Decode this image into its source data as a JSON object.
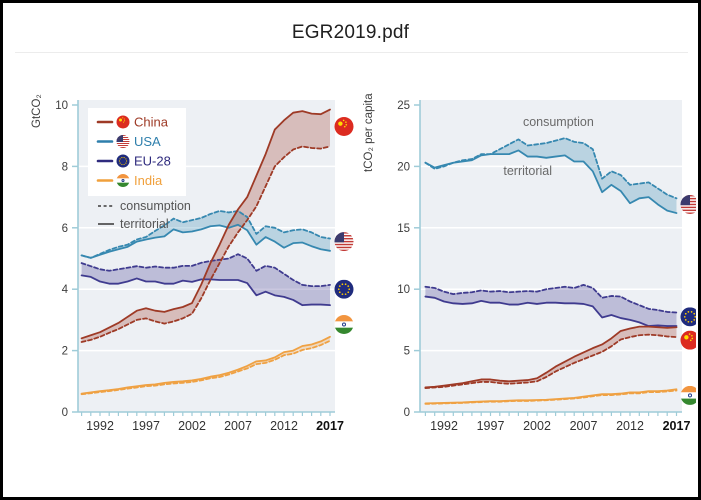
{
  "window": {
    "title": "EGR2019.pdf"
  },
  "colors": {
    "china": "#9e3a26",
    "usa": "#3688b0",
    "eu": "#3f3b8f",
    "india": "#efa143",
    "axis": "#9fccd8",
    "plot_bg": "#edf0f4",
    "grid": "#ffffff",
    "annotation": "#6a6a6a"
  },
  "chart_data": [
    {
      "type": "line",
      "title": "",
      "xlabel": "",
      "ylabel": "GtCO₂",
      "ylim": [
        0,
        10
      ],
      "yticks": [
        0,
        2,
        4,
        6,
        8,
        10
      ],
      "x": [
        1990,
        1991,
        1992,
        1993,
        1994,
        1995,
        1996,
        1997,
        1998,
        1999,
        2000,
        2001,
        2002,
        2003,
        2004,
        2005,
        2006,
        2007,
        2008,
        2009,
        2010,
        2011,
        2012,
        2013,
        2014,
        2015,
        2016,
        2017
      ],
      "xticks": [
        1992,
        1997,
        2002,
        2007,
        2012,
        2017
      ],
      "xtick_bold": 2017,
      "grid": true,
      "series": [
        {
          "name": "USA territorial",
          "country": "usa",
          "mode": "territorial",
          "color": "#3688b0",
          "values": [
            5.1,
            5.02,
            5.12,
            5.22,
            5.3,
            5.38,
            5.55,
            5.62,
            5.68,
            5.72,
            5.95,
            5.85,
            5.88,
            5.95,
            6.05,
            6.08,
            6.0,
            6.1,
            5.92,
            5.45,
            5.7,
            5.55,
            5.35,
            5.5,
            5.52,
            5.4,
            5.3,
            5.25
          ]
        },
        {
          "name": "USA consumption",
          "country": "usa",
          "mode": "consumption",
          "color": "#3688b0",
          "values": [
            5.1,
            5.02,
            5.15,
            5.28,
            5.38,
            5.45,
            5.62,
            5.7,
            5.9,
            6.08,
            6.3,
            6.18,
            6.25,
            6.32,
            6.45,
            6.55,
            6.5,
            6.55,
            6.35,
            5.8,
            6.05,
            6.0,
            5.85,
            5.92,
            5.95,
            5.85,
            5.7,
            5.65
          ]
        },
        {
          "name": "EU-28 territorial",
          "country": "eu",
          "mode": "territorial",
          "color": "#3f3b8f",
          "values": [
            4.45,
            4.4,
            4.25,
            4.18,
            4.18,
            4.25,
            4.35,
            4.25,
            4.25,
            4.18,
            4.18,
            4.28,
            4.24,
            4.32,
            4.32,
            4.3,
            4.3,
            4.3,
            4.2,
            3.8,
            3.92,
            3.8,
            3.75,
            3.65,
            3.48,
            3.5,
            3.5,
            3.48
          ]
        },
        {
          "name": "EU-28 consumption",
          "country": "eu",
          "mode": "consumption",
          "color": "#3f3b8f",
          "values": [
            4.85,
            4.75,
            4.65,
            4.6,
            4.65,
            4.7,
            4.75,
            4.7,
            4.74,
            4.7,
            4.7,
            4.76,
            4.76,
            4.86,
            4.92,
            4.96,
            5.0,
            5.14,
            5.0,
            4.6,
            4.76,
            4.7,
            4.5,
            4.3,
            4.14,
            4.1,
            4.1,
            4.14
          ]
        },
        {
          "name": "India territorial",
          "country": "india",
          "mode": "territorial",
          "color": "#efa143",
          "values": [
            0.6,
            0.64,
            0.68,
            0.71,
            0.75,
            0.8,
            0.84,
            0.88,
            0.9,
            0.95,
            0.98,
            1.0,
            1.03,
            1.08,
            1.15,
            1.2,
            1.28,
            1.38,
            1.5,
            1.65,
            1.68,
            1.78,
            1.95,
            2.0,
            2.15,
            2.2,
            2.3,
            2.45
          ]
        },
        {
          "name": "India consumption",
          "country": "india",
          "mode": "consumption",
          "color": "#efa143",
          "values": [
            0.58,
            0.61,
            0.65,
            0.68,
            0.72,
            0.76,
            0.8,
            0.84,
            0.86,
            0.9,
            0.93,
            0.95,
            0.98,
            1.03,
            1.1,
            1.14,
            1.22,
            1.32,
            1.42,
            1.56,
            1.6,
            1.7,
            1.85,
            1.9,
            2.02,
            2.08,
            2.18,
            2.32
          ]
        },
        {
          "name": "China territorial",
          "country": "china",
          "mode": "territorial",
          "color": "#9e3a26",
          "values": [
            2.4,
            2.5,
            2.6,
            2.75,
            2.9,
            3.1,
            3.3,
            3.38,
            3.3,
            3.26,
            3.35,
            3.42,
            3.55,
            4.15,
            4.85,
            5.45,
            6.1,
            6.6,
            7.0,
            7.7,
            8.4,
            9.2,
            9.5,
            9.75,
            9.8,
            9.72,
            9.7,
            9.85
          ]
        },
        {
          "name": "China consumption",
          "country": "china",
          "mode": "consumption",
          "color": "#9e3a26",
          "values": [
            2.28,
            2.35,
            2.45,
            2.58,
            2.7,
            2.85,
            3.0,
            3.05,
            2.95,
            2.88,
            2.95,
            3.05,
            3.2,
            3.7,
            4.3,
            4.85,
            5.4,
            5.85,
            6.25,
            6.7,
            7.35,
            8.0,
            8.3,
            8.55,
            8.65,
            8.6,
            8.58,
            8.65
          ]
        }
      ],
      "legend": {
        "position": "top-left",
        "entries": [
          {
            "label": "China",
            "flag": "china",
            "color": "#9e3a26"
          },
          {
            "label": "USA",
            "flag": "usa",
            "color": "#2e7fac"
          },
          {
            "label": "EU-28",
            "flag": "eu",
            "color": "#2f2b7e"
          },
          {
            "label": "India",
            "flag": "india",
            "color": "#f0a03c"
          }
        ],
        "consumption_label": "consumption",
        "territorial_label": "territorial"
      },
      "flags": [
        {
          "country": "china",
          "value": 9.3
        },
        {
          "country": "usa",
          "value": 5.55
        },
        {
          "country": "eu",
          "value": 4.0
        },
        {
          "country": "india",
          "value": 2.85
        }
      ]
    },
    {
      "type": "line",
      "title": "",
      "xlabel": "",
      "ylabel": "tCO₂ per capita",
      "ylim": [
        0,
        25
      ],
      "yticks": [
        0,
        5,
        10,
        15,
        20,
        25
      ],
      "x": [
        1990,
        1991,
        1992,
        1993,
        1994,
        1995,
        1996,
        1997,
        1998,
        1999,
        2000,
        2001,
        2002,
        2003,
        2004,
        2005,
        2006,
        2007,
        2008,
        2009,
        2010,
        2011,
        2012,
        2013,
        2014,
        2015,
        2016,
        2017
      ],
      "xticks": [
        1992,
        1997,
        2002,
        2007,
        2012,
        2017
      ],
      "xtick_bold": 2017,
      "grid": true,
      "series": [
        {
          "name": "USA territorial",
          "country": "usa",
          "mode": "territorial",
          "color": "#3688b0",
          "values": [
            20.3,
            19.9,
            20.1,
            20.3,
            20.4,
            20.5,
            20.9,
            21.0,
            21.0,
            21.0,
            21.3,
            20.8,
            20.8,
            20.7,
            20.8,
            20.9,
            20.4,
            20.4,
            19.6,
            17.9,
            18.5,
            18.0,
            17.0,
            17.4,
            17.5,
            16.9,
            16.4,
            16.2
          ]
        },
        {
          "name": "USA consumption",
          "country": "usa",
          "mode": "consumption",
          "color": "#3688b0",
          "values": [
            20.3,
            19.8,
            20.0,
            20.3,
            20.5,
            20.6,
            21.0,
            21.0,
            21.4,
            21.8,
            22.2,
            21.7,
            21.8,
            21.9,
            22.1,
            22.3,
            22.0,
            21.9,
            21.4,
            19.0,
            19.6,
            19.3,
            18.5,
            18.6,
            18.7,
            18.2,
            17.7,
            17.4
          ]
        },
        {
          "name": "EU-28 territorial",
          "country": "eu",
          "mode": "territorial",
          "color": "#3f3b8f",
          "values": [
            9.4,
            9.3,
            9.0,
            8.85,
            8.8,
            8.85,
            9.05,
            8.9,
            8.9,
            8.75,
            8.75,
            8.9,
            8.8,
            8.9,
            8.9,
            8.85,
            8.85,
            8.8,
            8.6,
            7.7,
            7.9,
            7.65,
            7.5,
            7.3,
            7.0,
            7.05,
            7.0,
            7.0
          ]
        },
        {
          "name": "EU-28 consumption",
          "country": "eu",
          "mode": "consumption",
          "color": "#3f3b8f",
          "values": [
            10.2,
            10.1,
            9.8,
            9.6,
            9.7,
            9.75,
            9.9,
            9.8,
            9.85,
            9.75,
            9.8,
            9.85,
            9.8,
            10.0,
            10.1,
            10.2,
            10.1,
            10.35,
            10.1,
            9.3,
            9.45,
            9.4,
            9.0,
            8.7,
            8.4,
            8.3,
            8.15,
            8.1
          ]
        },
        {
          "name": "India territorial",
          "country": "india",
          "mode": "territorial",
          "color": "#efa143",
          "values": [
            0.7,
            0.72,
            0.74,
            0.76,
            0.78,
            0.82,
            0.85,
            0.88,
            0.88,
            0.92,
            0.95,
            0.95,
            0.98,
            1.0,
            1.05,
            1.1,
            1.15,
            1.25,
            1.35,
            1.45,
            1.45,
            1.5,
            1.6,
            1.6,
            1.7,
            1.7,
            1.75,
            1.85
          ]
        },
        {
          "name": "India consumption",
          "country": "india",
          "mode": "consumption",
          "color": "#efa143",
          "values": [
            0.66,
            0.68,
            0.7,
            0.72,
            0.74,
            0.78,
            0.81,
            0.84,
            0.84,
            0.88,
            0.9,
            0.9,
            0.93,
            0.96,
            1.0,
            1.05,
            1.1,
            1.18,
            1.28,
            1.38,
            1.38,
            1.43,
            1.52,
            1.52,
            1.62,
            1.62,
            1.68,
            1.75
          ]
        },
        {
          "name": "China territorial",
          "country": "china",
          "mode": "territorial",
          "color": "#9e3a26",
          "values": [
            2.0,
            2.05,
            2.15,
            2.25,
            2.35,
            2.5,
            2.65,
            2.65,
            2.55,
            2.5,
            2.55,
            2.6,
            2.75,
            3.2,
            3.7,
            4.1,
            4.5,
            4.85,
            5.2,
            5.5,
            6.0,
            6.6,
            6.8,
            6.95,
            6.95,
            6.9,
            6.85,
            6.9
          ]
        },
        {
          "name": "China consumption",
          "country": "china",
          "mode": "consumption",
          "color": "#9e3a26",
          "values": [
            1.95,
            2.0,
            2.05,
            2.15,
            2.25,
            2.35,
            2.45,
            2.45,
            2.35,
            2.3,
            2.35,
            2.4,
            2.5,
            2.85,
            3.3,
            3.65,
            4.0,
            4.3,
            4.6,
            4.9,
            5.35,
            5.9,
            6.1,
            6.25,
            6.3,
            6.25,
            6.15,
            6.1
          ]
        }
      ],
      "annotations": [
        {
          "text": "consumption",
          "x": 2004.3,
          "y": 23.3
        },
        {
          "text": "territorial",
          "x": 2001.0,
          "y": 19.3
        }
      ],
      "flags": [
        {
          "country": "usa",
          "value": 16.9
        },
        {
          "country": "eu",
          "value": 7.75
        },
        {
          "country": "china",
          "value": 5.85
        },
        {
          "country": "india",
          "value": 1.35
        }
      ]
    }
  ]
}
